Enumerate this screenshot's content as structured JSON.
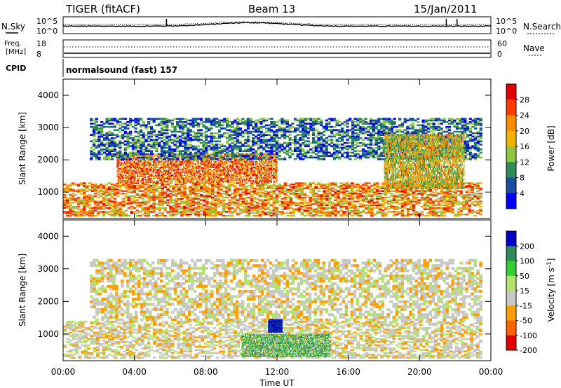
{
  "header": {
    "radar": "TIGER (fitACF)",
    "beam": "Beam 13",
    "date": "15/Jan/2011"
  },
  "status_panels": {
    "nsky_label": "N.Sky",
    "nsky_ticks": [
      "10^5",
      "10^0"
    ],
    "nsearch_label": "N.Search",
    "nsearch_ticks": [
      "10^5",
      "10^0"
    ],
    "freq_label_1": "Freq.",
    "freq_label_2": "[MHz]",
    "freq_ticks": [
      "18",
      "8"
    ],
    "nave_label": "Nave",
    "nave_ticks": [
      "60",
      "0"
    ],
    "cpid_label": "CPID",
    "cpid_value": "normalsound (fast) 157"
  },
  "chart_data": [
    {
      "type": "heatmap",
      "quantity": "Power",
      "ylabel": "Slant Range [km]",
      "ylim": [
        180,
        4500
      ],
      "yticks": [
        "1000",
        "2000",
        "3000",
        "4000"
      ],
      "colorbar_label": "Power [dB]",
      "colorbar_ticks": [
        "28",
        "24",
        "20",
        "16",
        "12",
        "8",
        "4"
      ],
      "colorbar_colors": [
        "#e00000",
        "#ff3c00",
        "#ff8c00",
        "#f2b200",
        "#8dc63f",
        "#2e8b57",
        "#1a4fa0",
        "#0000ff"
      ],
      "regions": [
        {
          "x": [
            0.0,
            23.5
          ],
          "y": [
            250,
            1300
          ],
          "dominant_db": 20
        },
        {
          "x": [
            3.0,
            12.0
          ],
          "y": [
            1300,
            2200
          ],
          "dominant_db": 22
        },
        {
          "x": [
            1.5,
            23.5
          ],
          "y": [
            2000,
            3300
          ],
          "dominant_db": 8
        },
        {
          "x": [
            18.0,
            22.5
          ],
          "y": [
            1100,
            2800
          ],
          "dominant_db": 16
        }
      ]
    },
    {
      "type": "heatmap",
      "quantity": "Velocity",
      "xlabel": "Time UT",
      "ylabel": "Slant Range [km]",
      "ylim": [
        180,
        4500
      ],
      "xlim": [
        0,
        24
      ],
      "xticks": [
        "00:00",
        "04:00",
        "08:00",
        "12:00",
        "16:00",
        "20:00",
        "00:00"
      ],
      "yticks": [
        "1000",
        "2000",
        "3000",
        "4000"
      ],
      "colorbar_label": "Velocity [m s",
      "colorbar_unit_exponent": "-1",
      "colorbar_label_close": "]",
      "colorbar_ticks": [
        "200",
        "100",
        "50",
        "15",
        "-15",
        "-50",
        "-100",
        "-200"
      ],
      "colorbar_colors": [
        "#0000c8",
        "#2e8b57",
        "#32cd32",
        "#b4e36c",
        "#c8c8c8",
        "#ffa000",
        "#ff6400",
        "#e00000"
      ],
      "regions": [
        {
          "x": [
            0.0,
            23.5
          ],
          "y": [
            250,
            1400
          ],
          "dominant_velocity": 0
        },
        {
          "x": [
            1.5,
            23.5
          ],
          "y": [
            1400,
            3300
          ],
          "dominant_velocity": 0
        },
        {
          "x": [
            11.5,
            12.3
          ],
          "y": [
            1050,
            1450
          ],
          "dominant_velocity": 200
        },
        {
          "x": [
            10.0,
            15.0
          ],
          "y": [
            300,
            1000
          ],
          "dominant_velocity": 60
        }
      ]
    }
  ]
}
